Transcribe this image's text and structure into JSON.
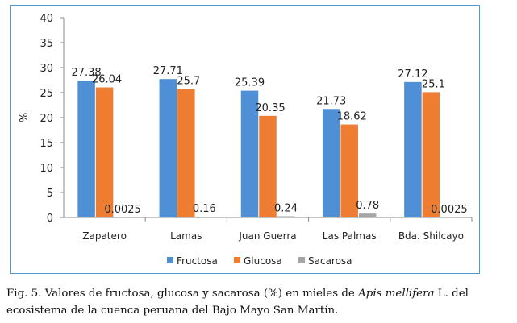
{
  "chart_data": {
    "type": "bar",
    "title": "",
    "xlabel": "",
    "ylabel": "%",
    "ylim": [
      0,
      40
    ],
    "yticks": [
      0,
      5,
      10,
      15,
      20,
      25,
      30,
      35,
      40
    ],
    "grid": false,
    "legend_position": "bottom",
    "categories": [
      "Zapatero",
      "Lamas",
      "Juan Guerra",
      "Las Palmas",
      "Bda. Shilcayo"
    ],
    "series": [
      {
        "name": "Fructosa",
        "color": "#4f8fd6",
        "values": [
          27.38,
          27.71,
          25.39,
          21.73,
          27.12
        ],
        "labels": [
          "27.38",
          "27.71",
          "25.39",
          "21.73",
          "27.12"
        ]
      },
      {
        "name": "Glucosa",
        "color": "#ee7d31",
        "values": [
          26.04,
          25.7,
          20.35,
          18.62,
          25.1
        ],
        "labels": [
          "26.04",
          "25.7",
          "20.35",
          "18.62",
          "25.1"
        ]
      },
      {
        "name": "Sacarosa",
        "color": "#a5a5a5",
        "values": [
          0.0025,
          0.16,
          0.24,
          0.78,
          0.0025
        ],
        "labels": [
          "0.0025",
          "0.16",
          "0.24",
          "0.78",
          "0.0025"
        ]
      }
    ]
  },
  "caption": {
    "prefix": "Fig. 5. Valores de fructosa, glucosa y sacarosa (%) en mieles de ",
    "species": "Apis mellifera",
    "suffix": " L. del",
    "line2": "ecosistema de la cuenca peruana del Bajo Mayo San Martín."
  }
}
